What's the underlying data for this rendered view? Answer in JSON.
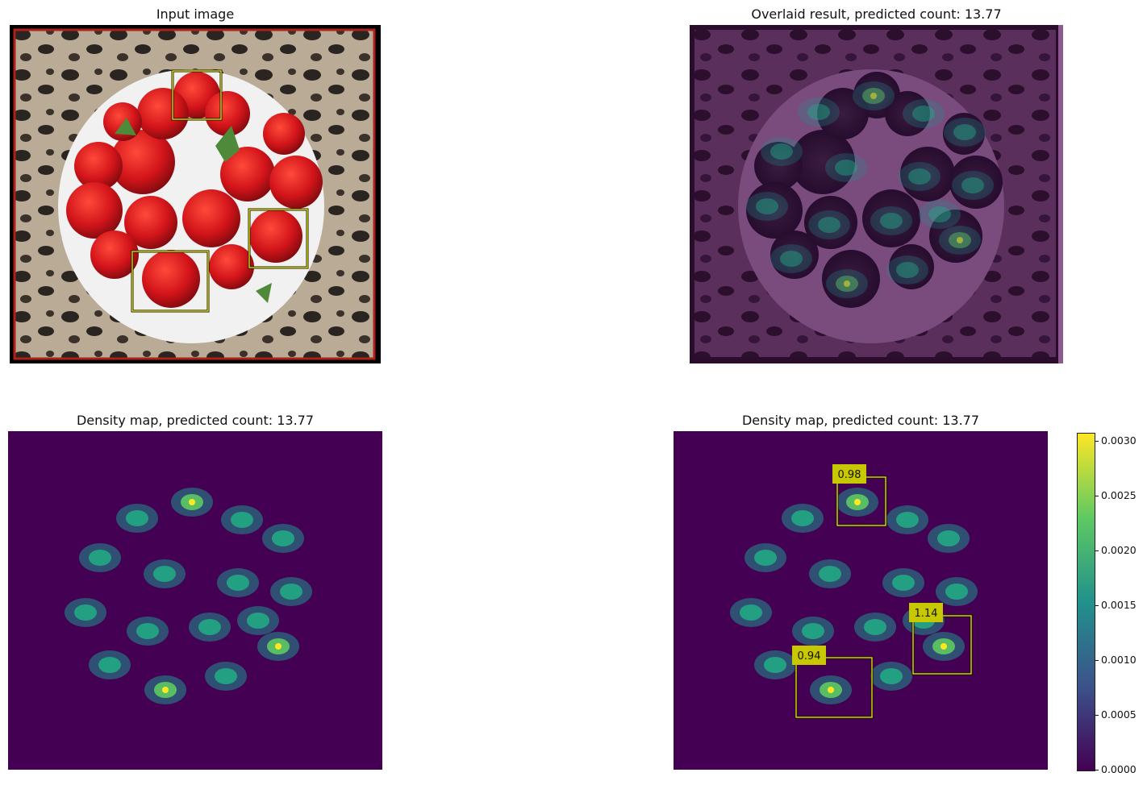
{
  "panels": {
    "input": {
      "title": "Input image"
    },
    "overlay": {
      "title": "Overlaid result, predicted count: 13.77"
    },
    "density_left": {
      "title": "Density map, predicted count: 13.77"
    },
    "density_right": {
      "title": "Density map, predicted count: 13.77"
    }
  },
  "exemplar_scores": [
    "0.98",
    "1.14",
    "0.94"
  ],
  "colorbar": {
    "ticks": [
      "0.0030",
      "0.0025",
      "0.0020",
      "0.0015",
      "0.0010",
      "0.0005",
      "0.0000"
    ],
    "min": 0.0,
    "max": 0.00307,
    "colormap": [
      "#440154",
      "#3b528b",
      "#21918c",
      "#5ec962",
      "#fde725"
    ]
  },
  "colors": {
    "box_outline": "#ffff00",
    "label_bg": "#c8c800",
    "density_bg": "#440154",
    "overlay_tint": "#5b1a5e"
  }
}
